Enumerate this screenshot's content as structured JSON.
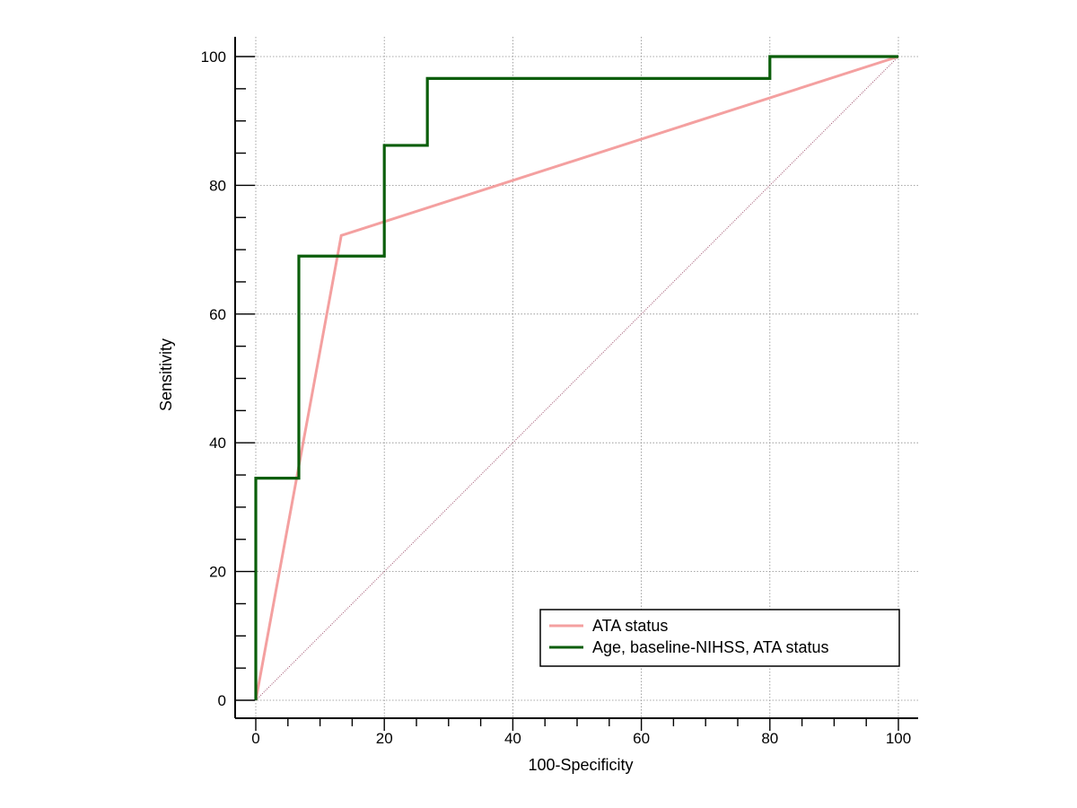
{
  "chart_data": {
    "type": "line",
    "title": "",
    "xlabel": "100-Specificity",
    "ylabel": "Sensitivity",
    "xlim": [
      0,
      100
    ],
    "ylim": [
      0,
      100
    ],
    "x_ticks": [
      0,
      20,
      40,
      60,
      80,
      100
    ],
    "y_ticks": [
      0,
      20,
      40,
      60,
      80,
      100
    ],
    "grid": true,
    "legend_position": "bottom-right",
    "reference_line": {
      "x": [
        0,
        100
      ],
      "y": [
        0,
        100
      ],
      "color": "#a0526e"
    },
    "series": [
      {
        "name": "ATA status",
        "color": "#f4a0a0",
        "x": [
          0,
          13.3,
          100
        ],
        "y": [
          0,
          72.2,
          100
        ]
      },
      {
        "name": "Age, baseline-NIHSS, ATA status",
        "color": "#0b5e0b",
        "x": [
          0,
          0,
          6.7,
          6.7,
          20,
          20,
          26.7,
          26.7,
          80,
          80,
          100
        ],
        "y": [
          0,
          34.5,
          34.5,
          69,
          69,
          86.2,
          86.2,
          96.6,
          96.6,
          100,
          100
        ]
      }
    ]
  }
}
